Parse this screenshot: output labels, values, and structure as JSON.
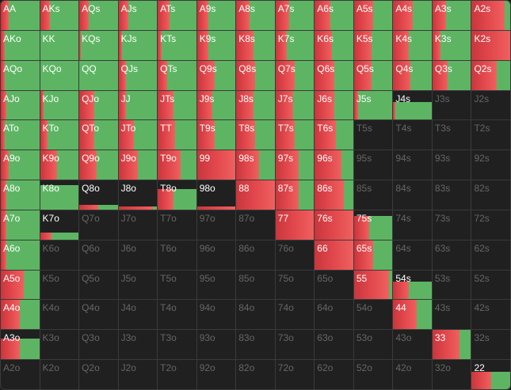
{
  "labels": [
    [
      "AA",
      "AKs",
      "AQs",
      "AJs",
      "ATs",
      "A9s",
      "A8s",
      "A7s",
      "A6s",
      "A5s",
      "A4s",
      "A3s",
      "A2s"
    ],
    [
      "AKo",
      "KK",
      "KQs",
      "KJs",
      "KTs",
      "K9s",
      "K8s",
      "K7s",
      "K6s",
      "K5s",
      "K4s",
      "K3s",
      "K2s"
    ],
    [
      "AQo",
      "KQo",
      "QQ",
      "QJs",
      "QTs",
      "Q9s",
      "Q8s",
      "Q7s",
      "Q6s",
      "Q5s",
      "Q4s",
      "Q3s",
      "Q2s"
    ],
    [
      "AJo",
      "KJo",
      "QJo",
      "JJ",
      "JTs",
      "J9s",
      "J8s",
      "J7s",
      "J6s",
      "J5s",
      "J4s",
      "J3s",
      "J2s"
    ],
    [
      "ATo",
      "KTo",
      "QTo",
      "JTo",
      "TT",
      "T9s",
      "T8s",
      "T7s",
      "T6s",
      "T5s",
      "T4s",
      "T3s",
      "T2s"
    ],
    [
      "A9o",
      "K9o",
      "Q9o",
      "J9o",
      "T9o",
      "99",
      "98s",
      "97s",
      "96s",
      "95s",
      "94s",
      "93s",
      "92s"
    ],
    [
      "A8o",
      "K8o",
      "Q8o",
      "J8o",
      "T8o",
      "98o",
      "88",
      "87s",
      "86s",
      "85s",
      "84s",
      "83s",
      "82s"
    ],
    [
      "A7o",
      "K7o",
      "Q7o",
      "J7o",
      "T7o",
      "97o",
      "87o",
      "77",
      "76s",
      "75s",
      "74s",
      "73s",
      "72s"
    ],
    [
      "A6o",
      "K6o",
      "Q6o",
      "J6o",
      "T6o",
      "96o",
      "86o",
      "76o",
      "66",
      "65s",
      "64s",
      "63s",
      "62s"
    ],
    [
      "A5o",
      "K5o",
      "Q5o",
      "J5o",
      "T5o",
      "95o",
      "85o",
      "75o",
      "65o",
      "55",
      "54s",
      "53s",
      "52s"
    ],
    [
      "A4o",
      "K4o",
      "Q4o",
      "J4o",
      "T4o",
      "94o",
      "84o",
      "74o",
      "64o",
      "54o",
      "44",
      "43s",
      "42s"
    ],
    [
      "A3o",
      "K3o",
      "Q3o",
      "J3o",
      "T3o",
      "93o",
      "83o",
      "73o",
      "63o",
      "53o",
      "43o",
      "33",
      "32s"
    ],
    [
      "A2o",
      "K2o",
      "Q2o",
      "J2o",
      "T2o",
      "92o",
      "82o",
      "72o",
      "62o",
      "52o",
      "42o",
      "32o",
      "22"
    ]
  ],
  "red": [
    [
      20,
      25,
      25,
      25,
      30,
      30,
      35,
      35,
      40,
      50,
      50,
      35,
      85
    ],
    [
      10,
      0,
      5,
      10,
      10,
      30,
      45,
      30,
      45,
      45,
      40,
      20,
      100
    ],
    [
      10,
      0,
      0,
      20,
      25,
      45,
      50,
      50,
      50,
      45,
      45,
      40,
      65
    ],
    [
      15,
      10,
      40,
      20,
      40,
      40,
      45,
      45,
      50,
      10,
      5,
      0,
      0
    ],
    [
      10,
      20,
      40,
      40,
      45,
      45,
      50,
      50,
      55,
      0,
      0,
      0,
      0
    ],
    [
      20,
      45,
      45,
      50,
      60,
      100,
      60,
      60,
      70,
      0,
      0,
      0,
      0
    ],
    [
      15,
      0,
      50,
      90,
      40,
      100,
      100,
      60,
      75,
      0,
      0,
      0,
      0
    ],
    [
      15,
      30,
      0,
      0,
      0,
      0,
      0,
      100,
      100,
      40,
      0,
      0,
      0
    ],
    [
      15,
      0,
      0,
      0,
      0,
      0,
      0,
      0,
      100,
      50,
      0,
      0,
      0
    ],
    [
      60,
      0,
      0,
      0,
      0,
      0,
      0,
      0,
      0,
      90,
      40,
      0,
      0
    ],
    [
      50,
      0,
      0,
      0,
      0,
      0,
      0,
      0,
      0,
      0,
      60,
      0,
      0
    ],
    [
      50,
      0,
      0,
      0,
      0,
      0,
      0,
      0,
      0,
      0,
      0,
      70,
      0
    ],
    [
      0,
      0,
      0,
      0,
      0,
      0,
      0,
      0,
      0,
      0,
      0,
      0,
      50
    ]
  ],
  "green": [
    [
      80,
      75,
      75,
      75,
      70,
      70,
      65,
      65,
      60,
      50,
      50,
      65,
      15
    ],
    [
      90,
      100,
      95,
      90,
      90,
      70,
      55,
      70,
      55,
      55,
      60,
      80,
      0
    ],
    [
      90,
      100,
      100,
      80,
      75,
      55,
      50,
      50,
      50,
      55,
      55,
      60,
      35
    ],
    [
      85,
      90,
      60,
      80,
      60,
      60,
      55,
      55,
      50,
      90,
      95,
      0,
      0
    ],
    [
      90,
      80,
      60,
      60,
      55,
      55,
      50,
      50,
      45,
      0,
      0,
      0,
      0
    ],
    [
      80,
      55,
      55,
      50,
      40,
      0,
      40,
      40,
      30,
      0,
      0,
      0,
      0
    ],
    [
      85,
      100,
      50,
      10,
      60,
      0,
      0,
      40,
      25,
      0,
      0,
      0,
      0
    ],
    [
      85,
      70,
      0,
      0,
      0,
      0,
      0,
      0,
      0,
      60,
      0,
      0,
      0
    ],
    [
      85,
      0,
      0,
      0,
      0,
      0,
      0,
      0,
      0,
      50,
      0,
      0,
      0
    ],
    [
      40,
      0,
      0,
      0,
      0,
      0,
      0,
      0,
      0,
      10,
      60,
      0,
      0
    ],
    [
      50,
      0,
      0,
      0,
      0,
      0,
      0,
      0,
      0,
      0,
      40,
      0,
      0
    ],
    [
      50,
      0,
      0,
      0,
      0,
      0,
      0,
      0,
      0,
      0,
      0,
      30,
      0
    ],
    [
      0,
      0,
      0,
      0,
      0,
      0,
      0,
      0,
      0,
      0,
      0,
      0,
      50
    ]
  ],
  "height": [
    [
      100,
      100,
      100,
      100,
      100,
      100,
      100,
      100,
      100,
      100,
      100,
      100,
      100
    ],
    [
      100,
      100,
      100,
      100,
      100,
      100,
      100,
      100,
      100,
      100,
      100,
      100,
      100
    ],
    [
      100,
      100,
      100,
      100,
      100,
      100,
      100,
      100,
      100,
      100,
      100,
      100,
      100
    ],
    [
      100,
      100,
      100,
      100,
      100,
      100,
      100,
      100,
      100,
      100,
      60,
      0,
      0
    ],
    [
      100,
      100,
      100,
      100,
      100,
      100,
      100,
      100,
      100,
      0,
      0,
      0,
      0
    ],
    [
      100,
      100,
      100,
      100,
      100,
      100,
      100,
      100,
      100,
      0,
      0,
      0,
      0
    ],
    [
      100,
      85,
      15,
      10,
      70,
      10,
      100,
      100,
      100,
      0,
      0,
      0,
      0
    ],
    [
      100,
      25,
      0,
      0,
      0,
      0,
      0,
      100,
      100,
      80,
      0,
      0,
      0
    ],
    [
      100,
      0,
      0,
      0,
      0,
      0,
      0,
      0,
      100,
      100,
      0,
      0,
      0
    ],
    [
      100,
      0,
      0,
      0,
      0,
      0,
      0,
      0,
      0,
      100,
      60,
      0,
      0
    ],
    [
      100,
      0,
      0,
      0,
      0,
      0,
      0,
      0,
      0,
      0,
      100,
      0,
      0
    ],
    [
      70,
      0,
      0,
      0,
      0,
      0,
      0,
      0,
      0,
      0,
      0,
      100,
      0
    ],
    [
      0,
      0,
      0,
      0,
      0,
      0,
      0,
      0,
      0,
      0,
      0,
      0,
      60
    ]
  ]
}
